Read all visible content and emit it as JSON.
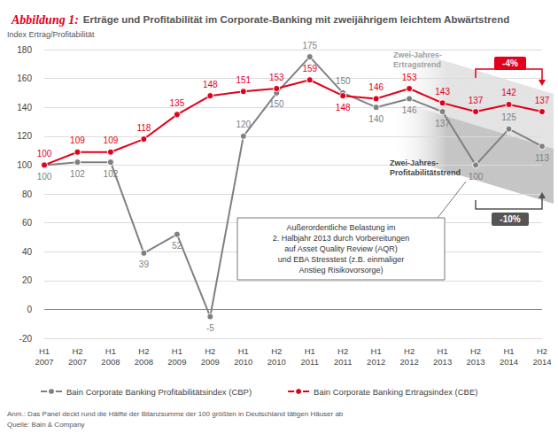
{
  "chart_data": {
    "type": "line",
    "title": "Abbildung 1: Erträge und Profitabilität im Corporate-Banking mit zweijährigem leichtem Abwärtstrend",
    "y_label": "Index Ertrag/Profitabilität",
    "categories": [
      "H1\n2007",
      "H2\n2007",
      "H1\n2008",
      "H2\n2008",
      "H1\n2009",
      "H2\n2009",
      "H1\n2010",
      "H2\n2010",
      "H1\n2011",
      "H2\n2011",
      "H1\n2012",
      "H2\n2012",
      "H1\n2013",
      "H2\n2013",
      "H1\n2014",
      "H2\n2014"
    ],
    "series": [
      {
        "name": "Bain Corporate Banking Profitabilitätsindex (CBP)",
        "color": "#808080",
        "marker": "circle",
        "values": [
          100,
          102,
          102,
          39,
          52,
          -5,
          120,
          150,
          175,
          150,
          140,
          146,
          137,
          100,
          125,
          113
        ]
      },
      {
        "name": "Bain Corporate Banking Ertragsindex (CBE)",
        "color": "#e2001a",
        "marker": "circle",
        "values": [
          100,
          109,
          109,
          118,
          135,
          148,
          151,
          153,
          159,
          148,
          146,
          153,
          143,
          137,
          142,
          137
        ]
      }
    ],
    "ylim": [
      -20,
      180
    ],
    "yticks": [
      -20,
      0,
      20,
      40,
      60,
      80,
      100,
      120,
      140,
      160,
      180
    ],
    "grid": true,
    "legend": "bottom",
    "data_labels": true,
    "annotations": [
      "Zwei-Jahres-\nErtragstrend",
      "Zwei-Jahres-\nProfitabilitätstrend",
      "-4%",
      "-10%",
      "Außerordentliche Belastung im\n2. Halbjahr 2013 durch Vorbereitungen\nauf Asset Quality Review (AQR)\nund EBA Stresstest (z.B. einmaliger\nAnstieg Risikovorsorge)"
    ],
    "notes": [
      "Anm.: Das Panel deckt rund die Hälfte der Bilanzsumme der 100 größten in Deutschland tätigen Häuser ab",
      "Quelle: Bain & Company"
    ]
  }
}
